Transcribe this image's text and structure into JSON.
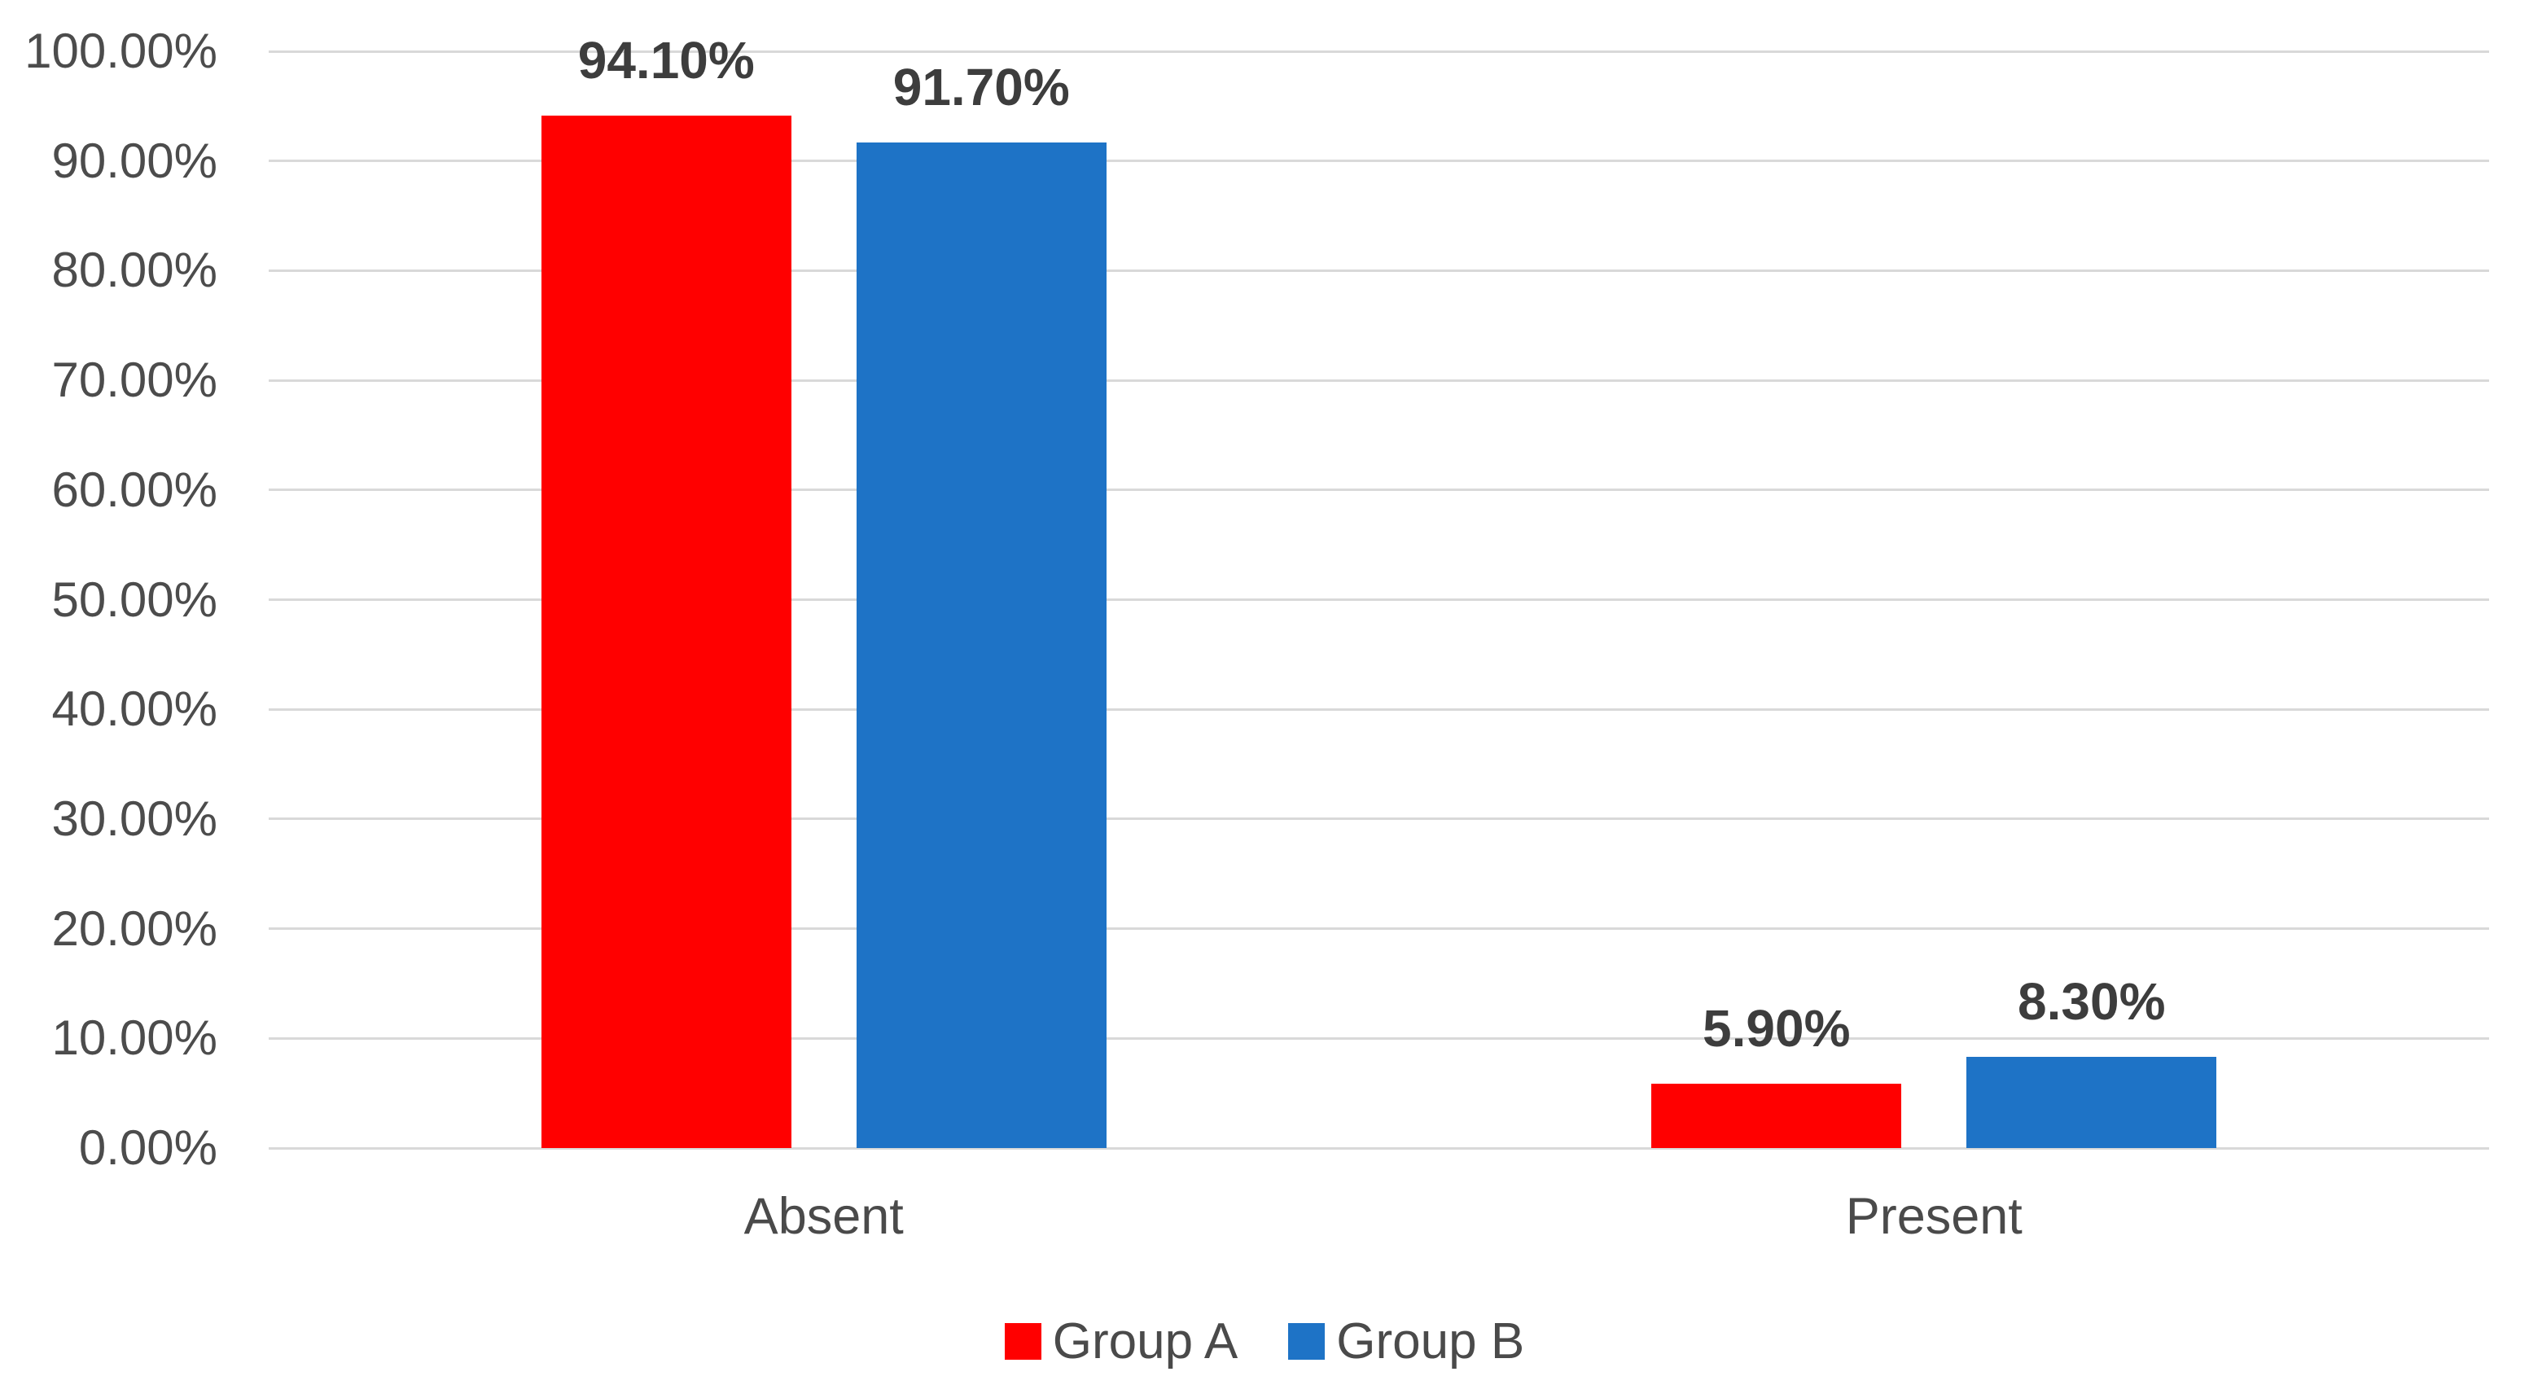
{
  "chart_data": {
    "type": "bar",
    "title": "",
    "xlabel": "",
    "ylabel": "",
    "categories": [
      "Absent",
      "Present"
    ],
    "series": [
      {
        "name": "Group A",
        "color": "#ff0000",
        "values": [
          94.1,
          5.9
        ],
        "labels": [
          "94.10%",
          "5.90%"
        ]
      },
      {
        "name": "Group B",
        "color": "#1e73c6",
        "values": [
          91.7,
          8.3
        ],
        "labels": [
          "91.70%",
          "8.30%"
        ]
      }
    ],
    "ylim": [
      0,
      100
    ],
    "ytick_labels": [
      "0.00%",
      "10.00%",
      "20.00%",
      "30.00%",
      "40.00%",
      "50.00%",
      "60.00%",
      "70.00%",
      "80.00%",
      "90.00%",
      "100.00%"
    ],
    "grid": true,
    "legend_position": "bottom"
  },
  "colors": {
    "gridline": "#d9d9d9",
    "tick_text": "#4c4c4c",
    "data_label_text": "#3d3d3d",
    "category_text": "#4a4a4a",
    "background": "#ffffff"
  }
}
